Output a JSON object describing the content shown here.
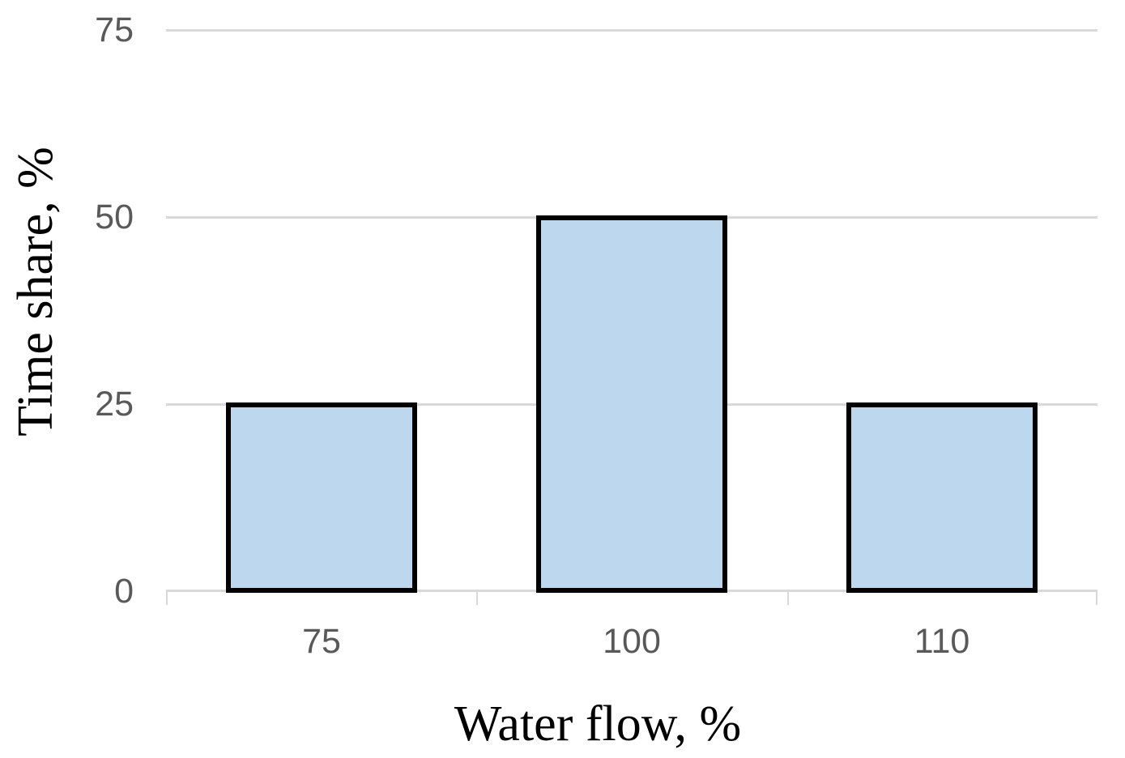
{
  "chart_data": {
    "type": "bar",
    "title": "",
    "categories": [
      "75",
      "100",
      "110"
    ],
    "values": [
      25,
      50,
      25
    ],
    "series": [
      {
        "name": "Time share",
        "values": [
          25,
          50,
          25
        ]
      }
    ],
    "xlabel": "Water flow, %",
    "ylabel": "Time share, %",
    "ylim": [
      0,
      75
    ],
    "yticks": [
      0,
      25,
      50,
      75
    ],
    "grid": "horizontal-only",
    "legend_position": "none",
    "colors": {
      "bar_fill": "#BDD7EE",
      "bar_border": "#000000",
      "gridline": "#D9D9D9",
      "axis_line": "#D9D9D9",
      "tick_label": "#595959",
      "axis_title": "#000000",
      "background": "#FFFFFF"
    }
  }
}
